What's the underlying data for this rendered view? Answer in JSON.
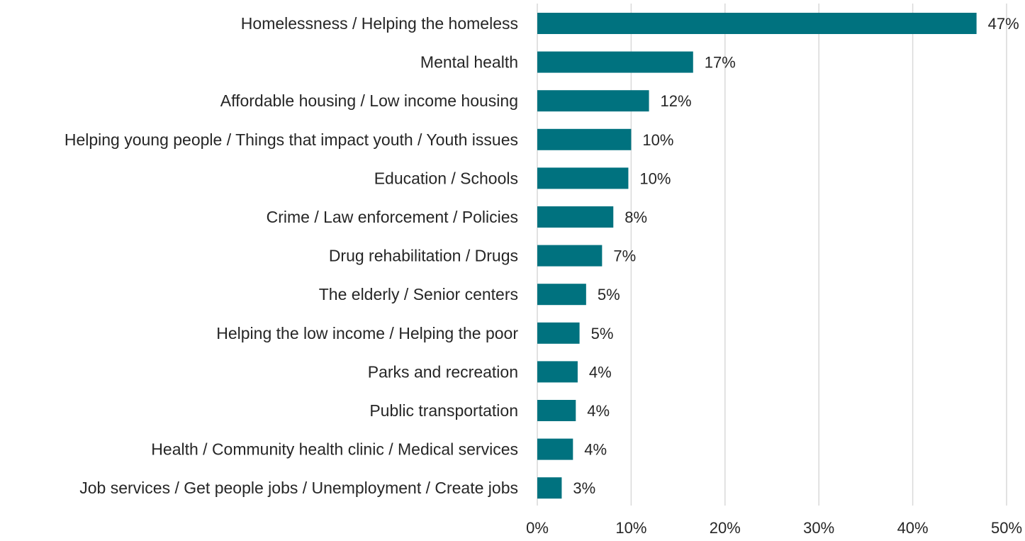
{
  "chart_data": {
    "type": "bar",
    "orientation": "horizontal",
    "title": "",
    "xlabel": "",
    "ylabel": "",
    "xlim": [
      0,
      50
    ],
    "ticks": [
      0,
      10,
      20,
      30,
      40,
      50
    ],
    "tick_labels": [
      "0%",
      "10%",
      "20%",
      "30%",
      "40%",
      "50%"
    ],
    "grid": true,
    "bar_color": "#00727f",
    "categories": [
      "Homelessness / Helping the homeless",
      "Mental health",
      "Affordable housing / Low income housing",
      "Helping young people / Things that impact youth / Youth issues",
      "Education / Schools",
      "Crime / Law enforcement / Policies",
      "Drug rehabilitation / Drugs",
      "The elderly / Senior centers",
      "Helping the low income / Helping the poor",
      "Parks and recreation",
      "Public transportation",
      "Health / Community health clinic / Medical services",
      "Job services / Get people jobs / Unemployment / Create jobs"
    ],
    "values": [
      46.8,
      16.6,
      11.9,
      10.0,
      9.7,
      8.1,
      6.9,
      5.2,
      4.5,
      4.3,
      4.1,
      3.8,
      2.6
    ],
    "value_labels": [
      "47%",
      "17%",
      "12%",
      "10%",
      "10%",
      "8%",
      "7%",
      "5%",
      "5%",
      "4%",
      "4%",
      "4%",
      "3%"
    ]
  }
}
